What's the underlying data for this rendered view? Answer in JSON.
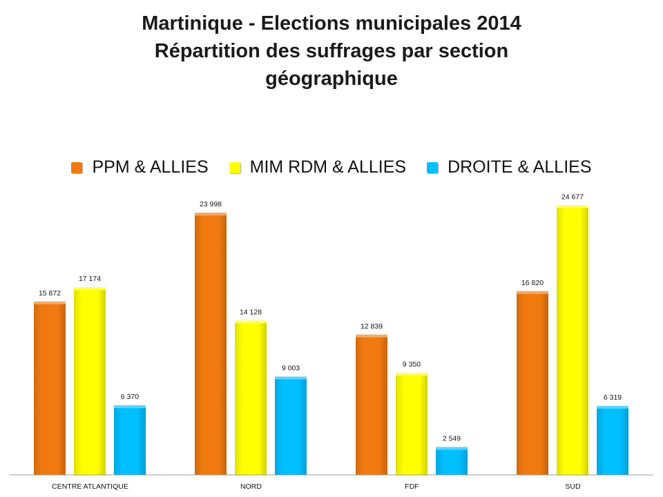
{
  "chart_data": {
    "type": "bar",
    "title_lines": [
      "Martinique - Elections municipales 2014",
      "Répartition des suffrages par section",
      "géographique"
    ],
    "categories": [
      "CENTRE ATLANTIQUE",
      "NORD",
      "FDF",
      "SUD"
    ],
    "series": [
      {
        "name": "PPM & ALLIES",
        "color": "#F07A10",
        "values": [
          15872,
          23998,
          12839,
          16820
        ],
        "labels": [
          "15 872",
          "23 998",
          "12 839",
          "16 820"
        ]
      },
      {
        "name": "MIM RDM & ALLIES",
        "color": "#FFFF00",
        "values": [
          17174,
          14128,
          9350,
          24677
        ],
        "labels": [
          "17 174",
          "14 128",
          "9 350",
          "24 677"
        ]
      },
      {
        "name": "DROITE & ALLIES",
        "color": "#00BFFF",
        "values": [
          6370,
          9003,
          2549,
          6319
        ],
        "labels": [
          "6 370",
          "9 003",
          "2 549",
          "6 319"
        ]
      }
    ],
    "ylim": [
      0,
      26000
    ],
    "legend_position": "top",
    "grid": false,
    "xlabel": "",
    "ylabel": ""
  }
}
